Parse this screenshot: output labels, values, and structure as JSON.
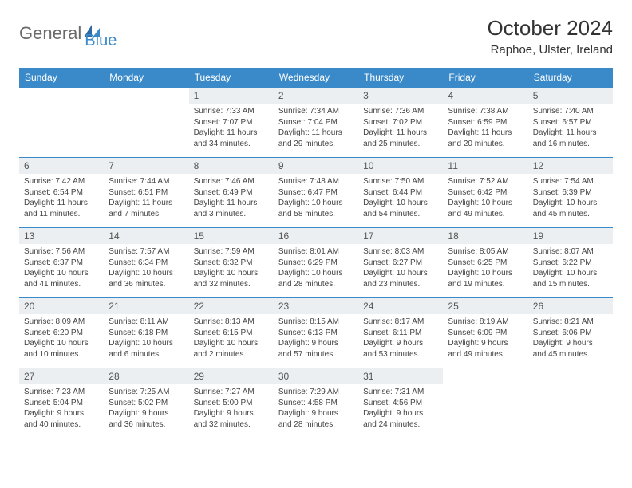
{
  "logo": {
    "text1": "General",
    "text2": "Blue",
    "color1": "#6a6a6a",
    "color2": "#3a8ac9"
  },
  "header": {
    "month_title": "October 2024",
    "location": "Raphoe, Ulster, Ireland"
  },
  "day_names": [
    "Sunday",
    "Monday",
    "Tuesday",
    "Wednesday",
    "Thursday",
    "Friday",
    "Saturday"
  ],
  "header_bg": "#3a8ac9",
  "daynum_bg": "#eceff1",
  "border_color": "#3a8ac9",
  "background_color": "#ffffff",
  "first_day_column_index": 2,
  "days": [
    {
      "n": 1,
      "sr": "7:33 AM",
      "ss": "7:07 PM",
      "dl": "11 hours and 34 minutes"
    },
    {
      "n": 2,
      "sr": "7:34 AM",
      "ss": "7:04 PM",
      "dl": "11 hours and 29 minutes"
    },
    {
      "n": 3,
      "sr": "7:36 AM",
      "ss": "7:02 PM",
      "dl": "11 hours and 25 minutes"
    },
    {
      "n": 4,
      "sr": "7:38 AM",
      "ss": "6:59 PM",
      "dl": "11 hours and 20 minutes"
    },
    {
      "n": 5,
      "sr": "7:40 AM",
      "ss": "6:57 PM",
      "dl": "11 hours and 16 minutes"
    },
    {
      "n": 6,
      "sr": "7:42 AM",
      "ss": "6:54 PM",
      "dl": "11 hours and 11 minutes"
    },
    {
      "n": 7,
      "sr": "7:44 AM",
      "ss": "6:51 PM",
      "dl": "11 hours and 7 minutes"
    },
    {
      "n": 8,
      "sr": "7:46 AM",
      "ss": "6:49 PM",
      "dl": "11 hours and 3 minutes"
    },
    {
      "n": 9,
      "sr": "7:48 AM",
      "ss": "6:47 PM",
      "dl": "10 hours and 58 minutes"
    },
    {
      "n": 10,
      "sr": "7:50 AM",
      "ss": "6:44 PM",
      "dl": "10 hours and 54 minutes"
    },
    {
      "n": 11,
      "sr": "7:52 AM",
      "ss": "6:42 PM",
      "dl": "10 hours and 49 minutes"
    },
    {
      "n": 12,
      "sr": "7:54 AM",
      "ss": "6:39 PM",
      "dl": "10 hours and 45 minutes"
    },
    {
      "n": 13,
      "sr": "7:56 AM",
      "ss": "6:37 PM",
      "dl": "10 hours and 41 minutes"
    },
    {
      "n": 14,
      "sr": "7:57 AM",
      "ss": "6:34 PM",
      "dl": "10 hours and 36 minutes"
    },
    {
      "n": 15,
      "sr": "7:59 AM",
      "ss": "6:32 PM",
      "dl": "10 hours and 32 minutes"
    },
    {
      "n": 16,
      "sr": "8:01 AM",
      "ss": "6:29 PM",
      "dl": "10 hours and 28 minutes"
    },
    {
      "n": 17,
      "sr": "8:03 AM",
      "ss": "6:27 PM",
      "dl": "10 hours and 23 minutes"
    },
    {
      "n": 18,
      "sr": "8:05 AM",
      "ss": "6:25 PM",
      "dl": "10 hours and 19 minutes"
    },
    {
      "n": 19,
      "sr": "8:07 AM",
      "ss": "6:22 PM",
      "dl": "10 hours and 15 minutes"
    },
    {
      "n": 20,
      "sr": "8:09 AM",
      "ss": "6:20 PM",
      "dl": "10 hours and 10 minutes"
    },
    {
      "n": 21,
      "sr": "8:11 AM",
      "ss": "6:18 PM",
      "dl": "10 hours and 6 minutes"
    },
    {
      "n": 22,
      "sr": "8:13 AM",
      "ss": "6:15 PM",
      "dl": "10 hours and 2 minutes"
    },
    {
      "n": 23,
      "sr": "8:15 AM",
      "ss": "6:13 PM",
      "dl": "9 hours and 57 minutes"
    },
    {
      "n": 24,
      "sr": "8:17 AM",
      "ss": "6:11 PM",
      "dl": "9 hours and 53 minutes"
    },
    {
      "n": 25,
      "sr": "8:19 AM",
      "ss": "6:09 PM",
      "dl": "9 hours and 49 minutes"
    },
    {
      "n": 26,
      "sr": "8:21 AM",
      "ss": "6:06 PM",
      "dl": "9 hours and 45 minutes"
    },
    {
      "n": 27,
      "sr": "7:23 AM",
      "ss": "5:04 PM",
      "dl": "9 hours and 40 minutes"
    },
    {
      "n": 28,
      "sr": "7:25 AM",
      "ss": "5:02 PM",
      "dl": "9 hours and 36 minutes"
    },
    {
      "n": 29,
      "sr": "7:27 AM",
      "ss": "5:00 PM",
      "dl": "9 hours and 32 minutes"
    },
    {
      "n": 30,
      "sr": "7:29 AM",
      "ss": "4:58 PM",
      "dl": "9 hours and 28 minutes"
    },
    {
      "n": 31,
      "sr": "7:31 AM",
      "ss": "4:56 PM",
      "dl": "9 hours and 24 minutes"
    }
  ],
  "labels": {
    "sunrise": "Sunrise:",
    "sunset": "Sunset:",
    "daylight": "Daylight:"
  }
}
